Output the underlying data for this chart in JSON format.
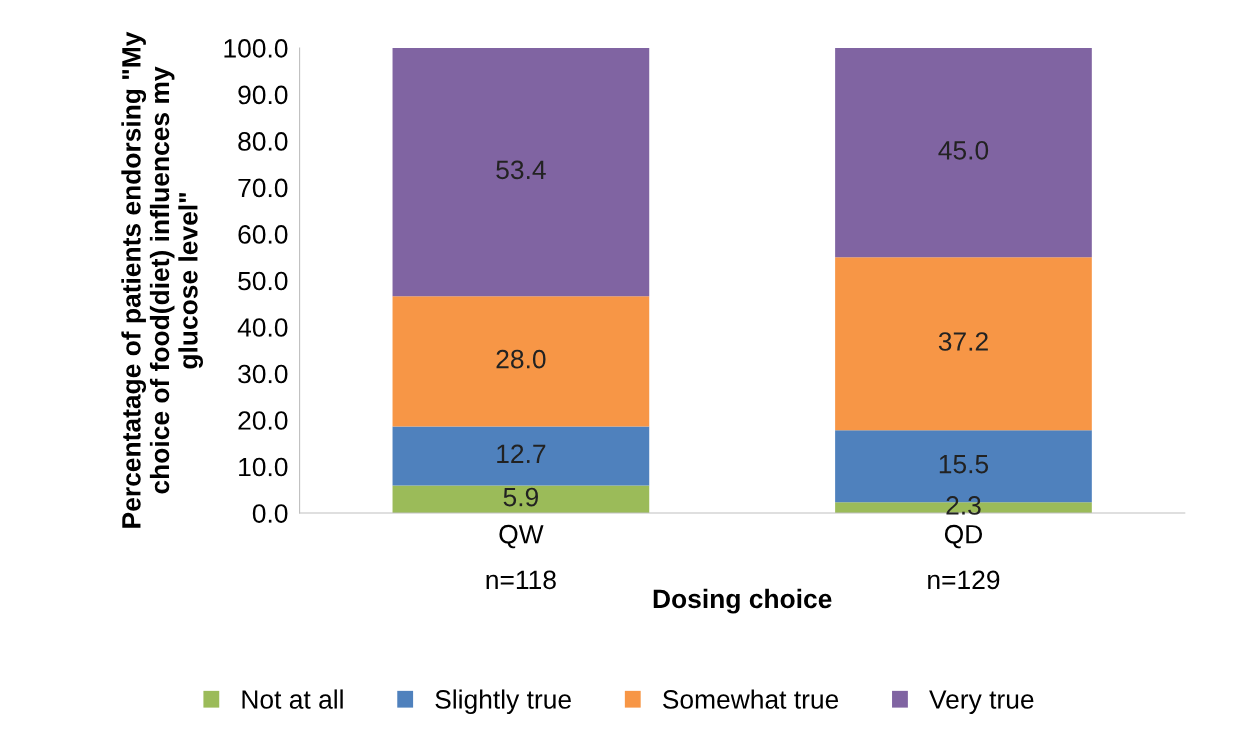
{
  "chart_data": {
    "type": "bar",
    "stacked": true,
    "categories": [
      "QW\nn=118",
      "QD\nn=129"
    ],
    "xlabel": "Dosing choice",
    "ylabel": "Percentatage of patients endorsing \"My\nchoice of food(diet) influences my\nglucose level\"",
    "series": [
      {
        "name": "Not at all",
        "color": "#9bbb59",
        "values": [
          5.9,
          2.3
        ],
        "value_labels": [
          "5.9",
          "2.3"
        ]
      },
      {
        "name": "Slightly true",
        "color": "#4f81bd",
        "values": [
          12.7,
          15.5
        ],
        "value_labels": [
          "12.7",
          "15.5"
        ]
      },
      {
        "name": "Somewhat true",
        "color": "#f79646",
        "values": [
          28.0,
          37.2
        ],
        "value_labels": [
          "28.0",
          "37.2"
        ]
      },
      {
        "name": "Very true",
        "color": "#8064a2",
        "values": [
          53.4,
          45.0
        ],
        "value_labels": [
          "53.4",
          "45.0"
        ]
      }
    ],
    "ylim": [
      0,
      100
    ],
    "yticks": [
      {
        "value": 0,
        "label": "0.0"
      },
      {
        "value": 10,
        "label": "10.0"
      },
      {
        "value": 20,
        "label": "20.0"
      },
      {
        "value": 30,
        "label": "30.0"
      },
      {
        "value": 40,
        "label": "40.0"
      },
      {
        "value": 50,
        "label": "50.0"
      },
      {
        "value": 60,
        "label": "60.0"
      },
      {
        "value": 70,
        "label": "70.0"
      },
      {
        "value": 80,
        "label": "80.0"
      },
      {
        "value": 90,
        "label": "90.0"
      },
      {
        "value": 100,
        "label": "100.0"
      }
    ],
    "grid": false,
    "legend": "bottom"
  }
}
